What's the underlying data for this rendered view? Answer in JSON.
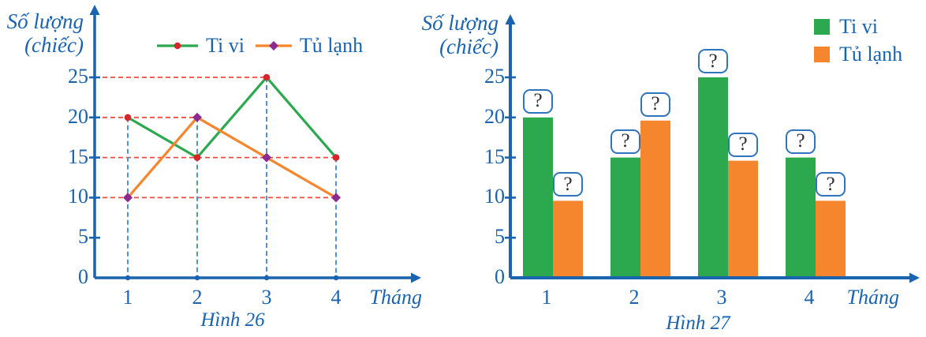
{
  "figure": {
    "left": {
      "ylabel_line1": "Số lượng",
      "ylabel_line2": "(chiếc)",
      "xlabel": "Tháng",
      "caption": "Hình 26"
    },
    "right": {
      "ylabel_line1": "Số lượng",
      "ylabel_line2": "(chiếc)",
      "xlabel": "Tháng",
      "caption": "Hình 27"
    }
  },
  "chart_data": [
    {
      "type": "line",
      "title": "Hình 26",
      "categories": [
        1,
        2,
        3,
        4
      ],
      "series": [
        {
          "name": "Ti vi",
          "values": [
            20,
            15,
            25,
            15
          ],
          "line_color": "#2ca94e",
          "marker": "circle",
          "marker_color": "#d6262b"
        },
        {
          "name": "Tủ lạnh",
          "values": [
            10,
            20,
            15,
            10
          ],
          "line_color": "#f5862e",
          "marker": "diamond",
          "marker_color": "#8c2a90"
        }
      ],
      "xlabel": "Tháng",
      "ylabel": "Số lượng (chiếc)",
      "yticks": [
        0,
        5,
        10,
        15,
        20,
        25
      ],
      "ylim": [
        0,
        27
      ],
      "legend_position": "top-center",
      "grid": "dashed guide lines from data points to axes"
    },
    {
      "type": "bar",
      "title": "Hình 27",
      "categories": [
        1,
        2,
        3,
        4
      ],
      "series": [
        {
          "name": "Ti vi",
          "values": [
            20,
            15,
            25,
            15
          ],
          "color": "#2ca94e"
        },
        {
          "name": "Tủ lạnh",
          "values": [
            10,
            20,
            15,
            10
          ],
          "color": "#f5862e"
        }
      ],
      "bar_label": "?",
      "xlabel": "Tháng",
      "ylabel": "Số lượng (chiếc)",
      "yticks": [
        0,
        5,
        10,
        15,
        20,
        25
      ],
      "ylim": [
        0,
        27
      ],
      "legend_position": "top-right",
      "grid": "off"
    }
  ],
  "colors": {
    "axis_and_text_blue": "#1a63ae",
    "grid_red_dashed": "#f24b3e",
    "grid_blue_dashed": "#4e94d4",
    "tivi_green": "#2ca94e",
    "tulanh_orange": "#f5862e",
    "tivi_marker_red": "#d6262b",
    "tulanh_marker_purple": "#8c2a90",
    "badge_border_blue": "#2f74bc",
    "question_mark": "#2f2f2f"
  }
}
